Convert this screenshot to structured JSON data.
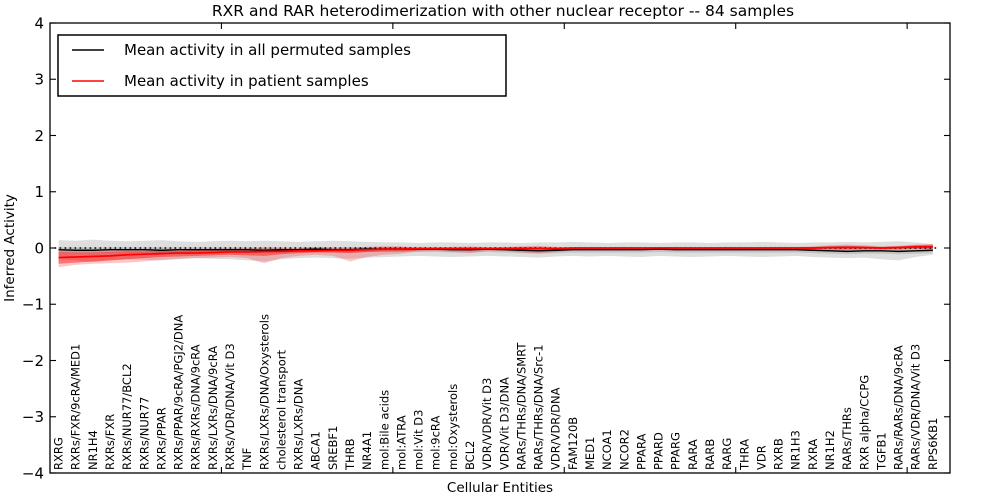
{
  "title": "RXR and RAR heterodimerization with other nuclear receptor -- 84 samples",
  "axes": {
    "ylabel": "Inferred Activity",
    "xlabel": "Cellular Entities",
    "yticks": [
      "4",
      "3",
      "2",
      "1",
      "0",
      "−1",
      "−2",
      "−3",
      "−4"
    ]
  },
  "legend": {
    "items": [
      {
        "label": "Mean activity in all permuted samples",
        "color": "#000000"
      },
      {
        "label": "Mean activity in patient samples",
        "color": "#ff0000"
      }
    ]
  },
  "chart_data": {
    "type": "line",
    "title": "RXR and RAR heterodimerization with other nuclear receptor -- 84 samples",
    "xlabel": "Cellular Entities",
    "ylabel": "Inferred Activity",
    "ylim": [
      -4,
      4
    ],
    "ytick_values": [
      4,
      3,
      2,
      1,
      0,
      -1,
      -2,
      -3,
      -4
    ],
    "layout": {
      "xlim": [
        0,
        52.5
      ],
      "xticks_at": [
        10,
        20,
        30,
        40,
        50
      ],
      "grid": false,
      "legend_position": "upper-left",
      "zero_line": "dotted"
    },
    "categories": [
      "RXRG",
      "RXRs/FXR/9cRA/MED1",
      "NR1H4",
      "RXRs/FXR",
      "RXRs/NUR77/BCL2",
      "RXRs/NUR77",
      "RXRs/PPAR",
      "RXRs/PPAR/9cRA/PGJ2/DNA",
      "RXRs/RXRs/DNA/9cRA",
      "RXRs/LXRs/DNA/9cRA",
      "RXRs/VDR/DNA/Vit D3",
      "TNF",
      "RXRs/LXRs/DNA/Oxysterols",
      "cholesterol transport",
      "RXRs/LXRs/DNA",
      "ABCA1",
      "SREBF1",
      "THRB",
      "NR4A1",
      "mol:Bile acids",
      "mol:ATRA",
      "mol:Vit D3",
      "mol:9cRA",
      "mol:Oxysterols",
      "BCL2",
      "VDR/VDR/Vit D3",
      "VDR/Vit D3/DNA",
      "RARs/THRs/DNA/SMRT",
      "RARs/THRs/DNA/Src-1",
      "VDR/VDR/DNA",
      "FAM120B",
      "MED1",
      "NCOA1",
      "NCOR2",
      "PPARA",
      "PPARD",
      "PPARG",
      "RARA",
      "RARB",
      "RARG",
      "THRA",
      "VDR",
      "RXRB",
      "NR1H3",
      "RXRA",
      "NR1H2",
      "RARs/THRs",
      "RXR alpha/CCPG",
      "TGFB1",
      "RARs/RARs/DNA/9cRA",
      "RARs/VDR/DNA/Vit D3",
      "RPS6KB1"
    ],
    "series": [
      {
        "name": "Mean activity in all permuted samples",
        "color": "#000000",
        "width": 1.4,
        "values": [
          -0.03,
          -0.04,
          -0.04,
          -0.03,
          -0.03,
          -0.03,
          -0.04,
          -0.03,
          -0.03,
          -0.03,
          -0.03,
          -0.03,
          -0.04,
          -0.03,
          -0.03,
          -0.02,
          -0.03,
          -0.03,
          -0.02,
          -0.02,
          -0.02,
          -0.02,
          -0.02,
          -0.03,
          -0.03,
          -0.02,
          -0.03,
          -0.04,
          -0.05,
          -0.04,
          -0.03,
          -0.03,
          -0.03,
          -0.03,
          -0.03,
          -0.02,
          -0.03,
          -0.03,
          -0.03,
          -0.03,
          -0.03,
          -0.03,
          -0.03,
          -0.03,
          -0.04,
          -0.05,
          -0.06,
          -0.05,
          -0.05,
          -0.06,
          -0.05,
          -0.04
        ]
      },
      {
        "name": "Mean activity in patient samples",
        "color": "#ff0000",
        "width": 1.7,
        "values": [
          -0.17,
          -0.16,
          -0.15,
          -0.14,
          -0.12,
          -0.11,
          -0.1,
          -0.09,
          -0.09,
          -0.08,
          -0.07,
          -0.07,
          -0.06,
          -0.06,
          -0.05,
          -0.05,
          -0.04,
          -0.04,
          -0.03,
          -0.02,
          -0.02,
          -0.01,
          -0.01,
          -0.01,
          -0.01,
          -0.01,
          -0.01,
          -0.01,
          -0.01,
          -0.01,
          0,
          0,
          0,
          0,
          0,
          0,
          0,
          0,
          0,
          0,
          0,
          0,
          0,
          0,
          0,
          0.01,
          0.01,
          0.01,
          0,
          0.01,
          0.02,
          0.02
        ]
      }
    ],
    "bands": [
      {
        "name": "permuted-outer-band",
        "color": "rgba(0,0,0,0.13)",
        "upper": [
          0.14,
          0.13,
          0.15,
          0.13,
          0.12,
          0.13,
          0.14,
          0.12,
          0.11,
          0.12,
          0.13,
          0.12,
          0.13,
          0.12,
          0.11,
          0.12,
          0.13,
          0.12,
          0.11,
          0.1,
          0.1,
          0.09,
          0.1,
          0.1,
          0.09,
          0.1,
          0.1,
          0.09,
          0.1,
          0.1,
          0.11,
          0.1,
          0.09,
          0.1,
          0.1,
          0.09,
          0.1,
          0.1,
          0.09,
          0.1,
          0.1,
          0.11,
          0.1,
          0.09,
          0.1,
          0.1,
          0.11,
          0.1,
          0.11,
          0.12,
          0.1,
          0.07
        ],
        "lower": [
          -0.2,
          -0.22,
          -0.25,
          -0.22,
          -0.2,
          -0.21,
          -0.22,
          -0.2,
          -0.18,
          -0.19,
          -0.2,
          -0.22,
          -0.24,
          -0.2,
          -0.18,
          -0.17,
          -0.18,
          -0.19,
          -0.17,
          -0.16,
          -0.15,
          -0.14,
          -0.15,
          -0.16,
          -0.15,
          -0.14,
          -0.15,
          -0.16,
          -0.17,
          -0.15,
          -0.14,
          -0.15,
          -0.14,
          -0.15,
          -0.16,
          -0.14,
          -0.15,
          -0.16,
          -0.15,
          -0.14,
          -0.15,
          -0.16,
          -0.15,
          -0.14,
          -0.16,
          -0.17,
          -0.18,
          -0.17,
          -0.2,
          -0.22,
          -0.16,
          -0.12
        ]
      },
      {
        "name": "permuted-inner-band",
        "color": "rgba(0,0,0,0.12)",
        "upper": [
          0.01,
          0.01,
          0.01,
          0.01,
          0.01,
          0.01,
          0.01,
          0.01,
          0.01,
          0.01,
          0.01,
          0.01,
          0.01,
          0.01,
          0.01,
          0.02,
          0.01,
          0.01,
          0.02,
          0.02,
          0.02,
          0.02,
          0.02,
          0.01,
          0.01,
          0.02,
          0.01,
          0.01,
          0,
          0.01,
          0.01,
          0.01,
          0.01,
          0.01,
          0.01,
          0.02,
          0.01,
          0.01,
          0.01,
          0.01,
          0.01,
          0.01,
          0.01,
          0.01,
          0.01,
          0,
          -0.01,
          0,
          0,
          -0.01,
          0,
          0.01
        ],
        "lower": [
          -0.08,
          -0.09,
          -0.09,
          -0.08,
          -0.08,
          -0.08,
          -0.09,
          -0.08,
          -0.08,
          -0.08,
          -0.08,
          -0.08,
          -0.09,
          -0.08,
          -0.08,
          -0.07,
          -0.08,
          -0.08,
          -0.07,
          -0.07,
          -0.07,
          -0.07,
          -0.07,
          -0.08,
          -0.08,
          -0.07,
          -0.08,
          -0.09,
          -0.1,
          -0.09,
          -0.08,
          -0.08,
          -0.08,
          -0.08,
          -0.08,
          -0.07,
          -0.08,
          -0.08,
          -0.08,
          -0.08,
          -0.08,
          -0.08,
          -0.08,
          -0.08,
          -0.09,
          -0.1,
          -0.11,
          -0.1,
          -0.1,
          -0.11,
          -0.1,
          -0.09
        ]
      },
      {
        "name": "patient-outer-band",
        "color": "rgba(255,0,0,0.22)",
        "upper": [
          -0.04,
          -0.05,
          -0.05,
          -0.04,
          -0.04,
          -0.03,
          -0.03,
          -0.02,
          -0.02,
          -0.01,
          -0.01,
          0,
          0.01,
          0,
          0,
          0.01,
          0.01,
          0.01,
          0.02,
          0.03,
          0.03,
          0.01,
          0.01,
          0.02,
          0.03,
          0.01,
          0.02,
          0.03,
          0.04,
          0.02,
          0.01,
          0.01,
          0.01,
          0.02,
          0.01,
          0.01,
          0.02,
          0.01,
          0.01,
          0.02,
          0.01,
          0.02,
          0.02,
          0.02,
          0.03,
          0.05,
          0.06,
          0.05,
          0.03,
          0.04,
          0.06,
          0.07
        ],
        "lower": [
          -0.34,
          -0.3,
          -0.28,
          -0.27,
          -0.26,
          -0.24,
          -0.21,
          -0.19,
          -0.18,
          -0.17,
          -0.16,
          -0.18,
          -0.27,
          -0.18,
          -0.14,
          -0.12,
          -0.14,
          -0.24,
          -0.16,
          -0.12,
          -0.1,
          -0.06,
          -0.05,
          -0.07,
          -0.09,
          -0.05,
          -0.05,
          -0.08,
          -0.1,
          -0.07,
          -0.04,
          -0.03,
          -0.03,
          -0.04,
          -0.03,
          -0.03,
          -0.04,
          -0.03,
          -0.03,
          -0.03,
          -0.03,
          -0.03,
          -0.03,
          -0.03,
          -0.04,
          -0.04,
          -0.04,
          -0.03,
          -0.03,
          -0.03,
          -0.02,
          -0.02
        ]
      },
      {
        "name": "patient-inner-band",
        "color": "rgba(255,0,0,0.42)",
        "upper": [
          -0.07,
          -0.08,
          -0.08,
          -0.07,
          -0.06,
          -0.06,
          -0.05,
          -0.05,
          -0.04,
          -0.04,
          -0.03,
          -0.03,
          -0.02,
          -0.03,
          -0.02,
          -0.02,
          -0.01,
          -0.01,
          0,
          0.01,
          0.01,
          0,
          0,
          0.01,
          0.01,
          0,
          0.01,
          0.02,
          0.02,
          0.01,
          0.01,
          0.01,
          0.01,
          0.01,
          0.01,
          0.01,
          0.01,
          0.01,
          0.01,
          0.01,
          0.01,
          0.01,
          0.01,
          0.01,
          0.02,
          0.03,
          0.04,
          0.03,
          0.02,
          0.03,
          0.05,
          0.06
        ],
        "lower": [
          -0.28,
          -0.26,
          -0.24,
          -0.22,
          -0.2,
          -0.18,
          -0.16,
          -0.15,
          -0.14,
          -0.13,
          -0.12,
          -0.13,
          -0.14,
          -0.11,
          -0.09,
          -0.08,
          -0.08,
          -0.09,
          -0.07,
          -0.06,
          -0.06,
          -0.04,
          -0.03,
          -0.04,
          -0.05,
          -0.03,
          -0.03,
          -0.04,
          -0.05,
          -0.04,
          -0.02,
          -0.02,
          -0.02,
          -0.02,
          -0.02,
          -0.02,
          -0.02,
          -0.02,
          -0.02,
          -0.02,
          -0.02,
          -0.02,
          -0.02,
          -0.02,
          -0.02,
          -0.02,
          -0.02,
          -0.02,
          -0.02,
          -0.02,
          -0.01,
          -0.01
        ]
      }
    ]
  }
}
